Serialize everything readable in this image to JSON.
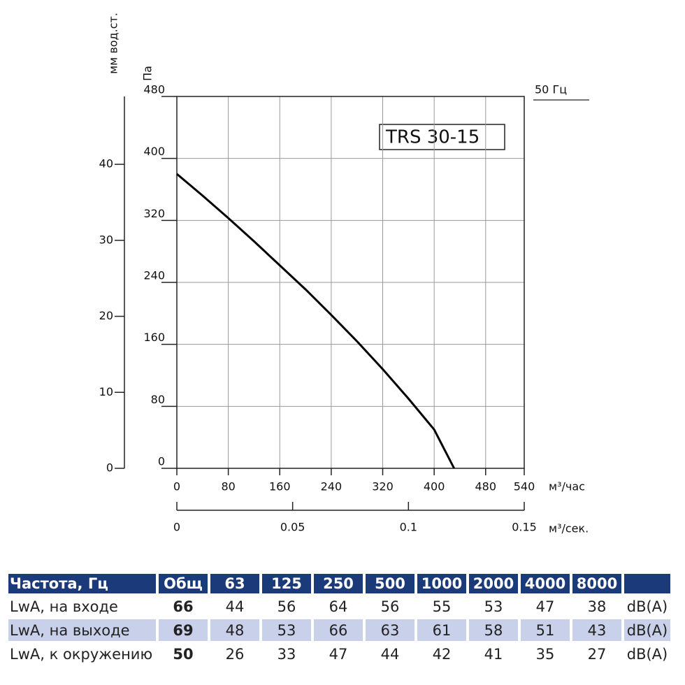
{
  "chart_data": {
    "type": "line",
    "ylabel": "Па",
    "y2label": "мм вод.ст.",
    "xlabel": "м³/час",
    "x2label": "м³/сек.",
    "annotation": "TRS 30-15",
    "x": [
      0,
      40,
      80,
      120,
      160,
      200,
      240,
      280,
      320,
      360,
      400,
      431
    ],
    "series": [
      {
        "name": "50 Гц",
        "color": "#000000",
        "values": [
          380,
          352,
          323,
          293,
          262,
          231,
          198,
          164,
          128,
          90,
          50,
          0
        ]
      }
    ],
    "xlim": [
      0,
      540
    ],
    "xticks": [
      0,
      80,
      160,
      240,
      320,
      400,
      480,
      540
    ],
    "ylim": [
      0,
      480
    ],
    "yticks": [
      0,
      80,
      160,
      240,
      320,
      400,
      480
    ],
    "y2lim": [
      0,
      48.93
    ],
    "y2ticks": [
      0,
      10,
      20,
      30,
      40
    ],
    "x2lim": [
      0,
      0.15
    ],
    "x2ticks": [
      0,
      0.05,
      0.1,
      0.15
    ],
    "grid": true
  },
  "table": {
    "header": [
      "Частота, Гц",
      "Общ",
      "63",
      "125",
      "250",
      "500",
      "1000",
      "2000",
      "4000",
      "8000"
    ],
    "rows": [
      {
        "label": "LwA, на входе",
        "total": 66,
        "values": [
          44,
          56,
          64,
          56,
          55,
          53,
          47,
          38
        ],
        "unit": "dB(A)"
      },
      {
        "label": "LwA, на выходе",
        "total": 69,
        "values": [
          48,
          53,
          66,
          63,
          61,
          58,
          51,
          43
        ],
        "unit": "dB(A)"
      },
      {
        "label": "LwA, к окружению",
        "total": 50,
        "values": [
          26,
          33,
          47,
          44,
          42,
          41,
          35,
          27
        ],
        "unit": "dB(A)"
      }
    ]
  }
}
